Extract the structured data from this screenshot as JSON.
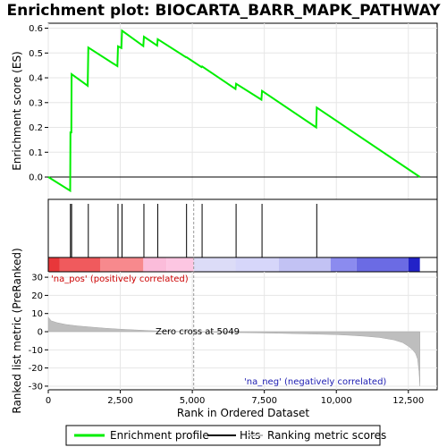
{
  "chart_data": {
    "type": "line",
    "title": "Enrichment plot: BIOCARTA_BARR_MAPK_PATHWAY",
    "xlabel": "Rank in Ordered Dataset",
    "es_ylabel": "Enrichment score (ES)",
    "metric_ylabel": "Ranked list metric (PreRanked)",
    "xlim": [
      0,
      13500
    ],
    "es_ylim": [
      -0.09,
      0.62
    ],
    "metric_ylim": [
      -32,
      33
    ],
    "x_ticks": [
      0,
      2500,
      5000,
      7500,
      10000,
      12500
    ],
    "x_tick_labels": [
      "0",
      "2,500",
      "5,000",
      "7,500",
      "10,000",
      "12,500"
    ],
    "es_ticks": [
      0.0,
      0.1,
      0.2,
      0.3,
      0.4,
      0.5,
      0.6
    ],
    "es_tick_labels": [
      "0.0",
      "0.1",
      "0.2",
      "0.3",
      "0.4",
      "0.5",
      "0.6"
    ],
    "metric_ticks": [
      30,
      20,
      10,
      0,
      -10,
      -20,
      -30
    ],
    "metric_tick_labels": [
      "30",
      "20",
      "10",
      "0",
      "-10",
      "-20",
      "-30"
    ],
    "grid": true,
    "enrichment_profile": {
      "name": "Enrichment profile",
      "color": "#00ee00",
      "x": [
        0,
        760,
        770,
        800,
        810,
        1370,
        1390,
        2400,
        2420,
        2540,
        2560,
        3300,
        3320,
        3780,
        3800,
        4780,
        4800,
        5320,
        5340,
        6500,
        6520,
        7400,
        7420,
        9300,
        9320,
        12900
      ],
      "y": [
        0.0,
        -0.055,
        0.18,
        0.18,
        0.415,
        0.368,
        0.522,
        0.447,
        0.527,
        0.52,
        0.59,
        0.528,
        0.566,
        0.53,
        0.556,
        0.483,
        0.483,
        0.443,
        0.446,
        0.355,
        0.376,
        0.312,
        0.347,
        0.2,
        0.28,
        0.0
      ]
    },
    "hits": {
      "name": "Hits",
      "x": [
        770,
        810,
        1390,
        2420,
        2560,
        3320,
        3800,
        4800,
        5340,
        6520,
        7420,
        9320
      ]
    },
    "ranking_metric": {
      "name": "Ranking metric scores",
      "color": "#bebebe",
      "x": [
        0,
        100,
        300,
        600,
        1000,
        1500,
        2000,
        2500,
        3000,
        3500,
        4000,
        4500,
        5049,
        5500,
        6000,
        7000,
        8000,
        9000,
        10000,
        10500,
        11000,
        11500,
        12000,
        12300,
        12500,
        12650,
        12750,
        12820,
        12870,
        12900
      ],
      "y": [
        8.0,
        6.0,
        5.0,
        4.0,
        3.2,
        2.5,
        1.9,
        1.4,
        1.0,
        0.6,
        0.3,
        0.15,
        0.0,
        -0.2,
        -0.4,
        -0.6,
        -0.9,
        -1.2,
        -1.6,
        -2.0,
        -2.5,
        -3.2,
        -4.5,
        -6.0,
        -8.0,
        -10.0,
        -12.0,
        -15.0,
        -22.0,
        -30.0
      ]
    },
    "heatmap_bands": [
      {
        "x0": 0,
        "x1": 400,
        "color": "#e8373a"
      },
      {
        "x0": 400,
        "x1": 1800,
        "color": "#f05a5d"
      },
      {
        "x0": 1800,
        "x1": 3300,
        "color": "#f7898d"
      },
      {
        "x0": 3300,
        "x1": 4100,
        "color": "#fbbcda"
      },
      {
        "x0": 4100,
        "x1": 5050,
        "color": "#fdc6e2"
      },
      {
        "x0": 5050,
        "x1": 6500,
        "color": "#dcdcf7"
      },
      {
        "x0": 6500,
        "x1": 8000,
        "color": "#d6d6fa"
      },
      {
        "x0": 8000,
        "x1": 9800,
        "color": "#c2c2f4"
      },
      {
        "x0": 9800,
        "x1": 10700,
        "color": "#8b8bef"
      },
      {
        "x0": 10700,
        "x1": 12500,
        "color": "#6b6be4"
      },
      {
        "x0": 12500,
        "x1": 12900,
        "color": "#2222c8"
      }
    ],
    "zero_cross": 5049,
    "annotations": {
      "pos": "'na_pos' (positively correlated)",
      "neg": "'na_neg' (negatively correlated)",
      "zero": "Zero cross at 5049"
    },
    "legend": {
      "placement": "bottom",
      "items": [
        "Enrichment profile",
        "Hits",
        "Ranking metric scores"
      ]
    }
  }
}
